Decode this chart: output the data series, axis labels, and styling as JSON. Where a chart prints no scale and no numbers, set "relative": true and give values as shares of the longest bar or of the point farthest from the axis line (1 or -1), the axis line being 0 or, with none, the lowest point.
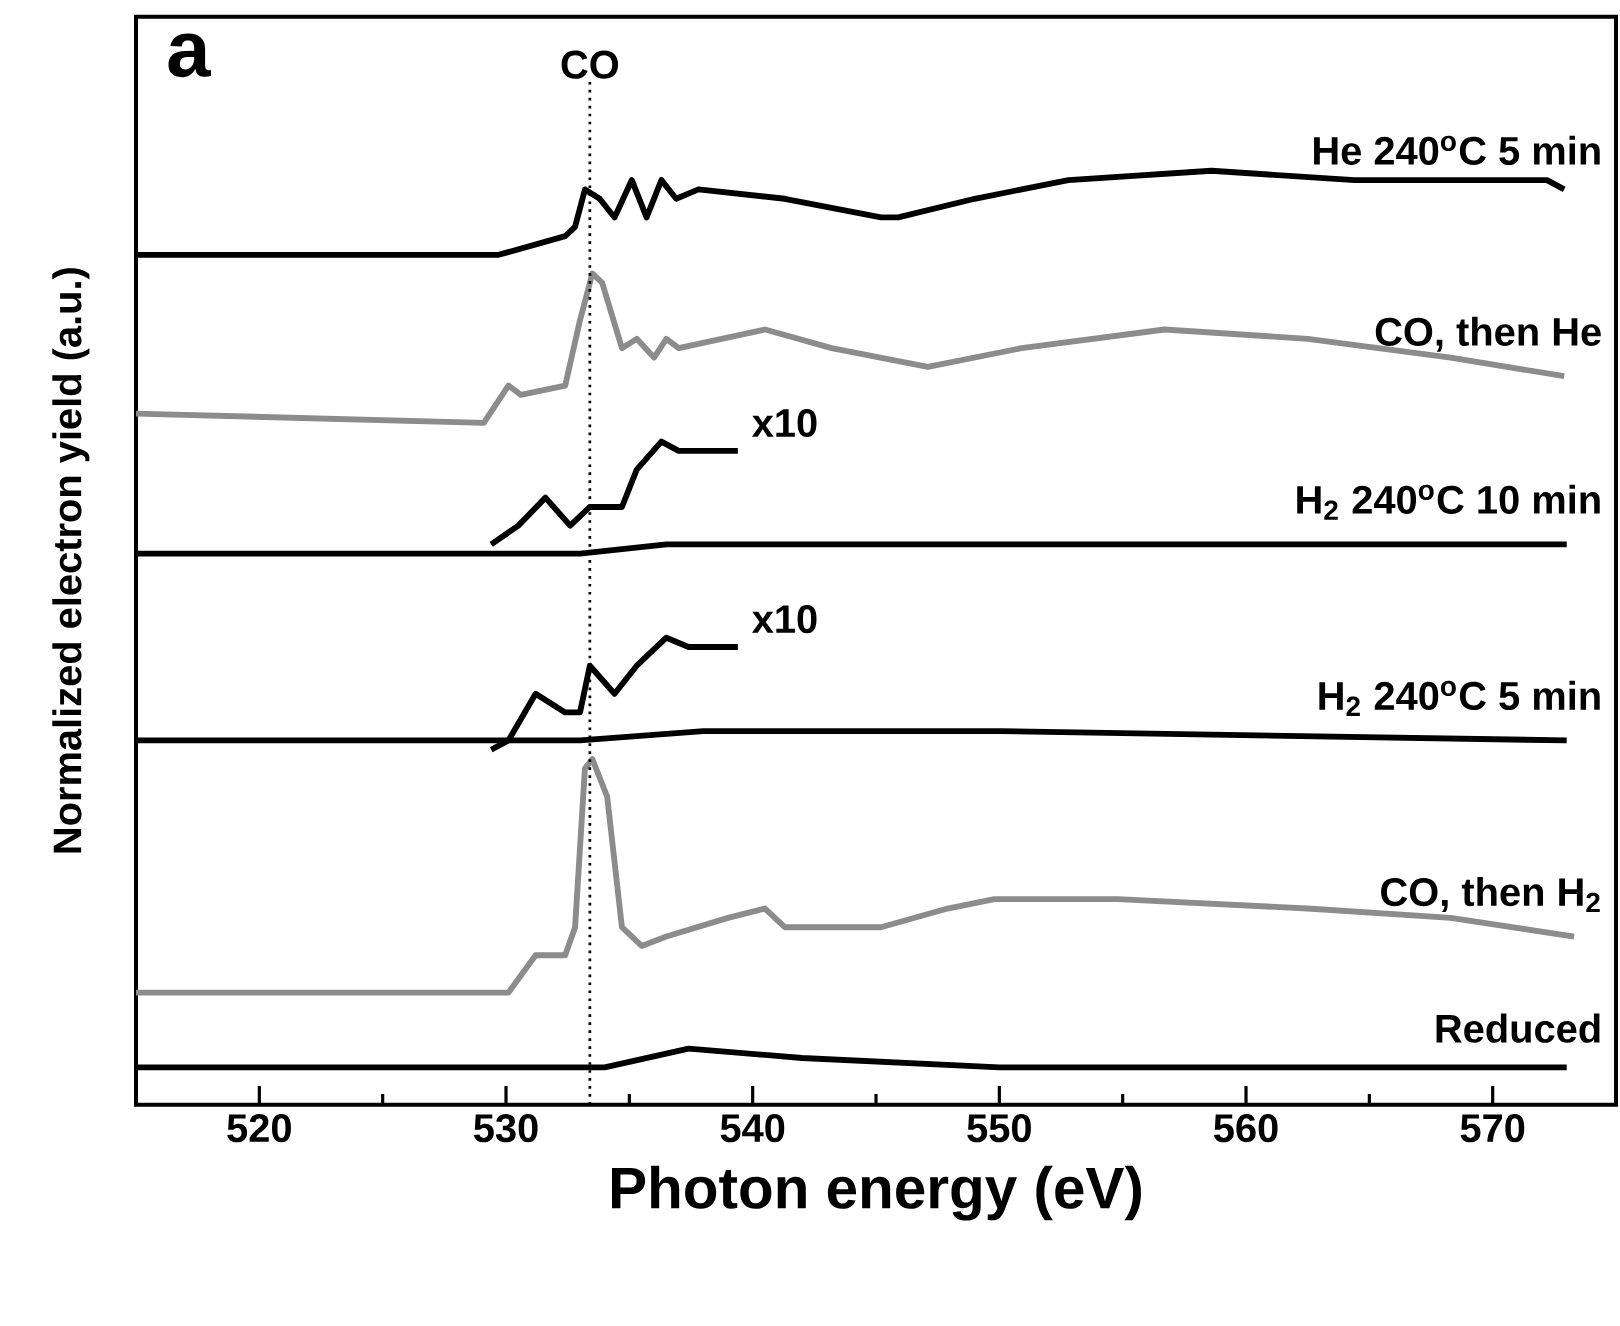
{
  "chart_data": {
    "type": "line",
    "relative": true,
    "xlabel": "Photon energy (eV)",
    "ylabel": "Normalized electron yield (a.u.)",
    "xlim": [
      515,
      575
    ],
    "xticks": [
      520,
      530,
      540,
      550,
      560,
      570
    ],
    "marker": "none",
    "line_style": "solid",
    "ref_lines": [
      {
        "axis": "x",
        "value": 533.4,
        "label": "CO",
        "line_style": "dotted",
        "color": "#000000"
      }
    ],
    "annotations": [
      "a"
    ],
    "series": [
      {
        "name": "He 240$^{o}$C 5 min",
        "color": "#000000",
        "x": [
          515.0,
          529.7,
          532.4,
          532.8,
          533.2,
          533.8,
          534.4,
          535.1,
          535.7,
          536.3,
          536.9,
          537.8,
          541.3,
          545.2,
          545.9,
          549.0,
          552.8,
          558.6,
          564.4,
          572.2,
          572.9
        ],
        "values": [
          0.91,
          0.91,
          0.93,
          0.94,
          0.98,
          0.97,
          0.95,
          0.99,
          0.95,
          0.99,
          0.97,
          0.98,
          0.97,
          0.95,
          0.95,
          0.97,
          0.99,
          1.0,
          0.99,
          0.99,
          0.98
        ]
      },
      {
        "name": "CO, then He",
        "color": "#8c8c8c",
        "x": [
          515.0,
          529.1,
          530.1,
          530.6,
          532.4,
          533.0,
          533.5,
          533.9,
          534.7,
          535.3,
          536.0,
          536.5,
          537.0,
          540.5,
          543.2,
          547.1,
          550.9,
          556.7,
          562.5,
          568.3,
          572.9
        ],
        "values": [
          0.74,
          0.73,
          0.77,
          0.76,
          0.77,
          0.84,
          0.89,
          0.88,
          0.81,
          0.82,
          0.8,
          0.82,
          0.81,
          0.83,
          0.81,
          0.79,
          0.81,
          0.83,
          0.82,
          0.8,
          0.78
        ]
      },
      {
        "name": "x10",
        "color": "#000000",
        "x": [
          529.4,
          530.5,
          531.6,
          532.6,
          533.4,
          534.7,
          535.3,
          536.3,
          537.0,
          538.2,
          539.4
        ],
        "values": [
          0.6,
          0.62,
          0.65,
          0.62,
          0.64,
          0.64,
          0.68,
          0.71,
          0.7,
          0.7,
          0.7
        ]
      },
      {
        "name": "H$_{2}$ 240$^{o}$C 10 min",
        "color": "#000000",
        "x": [
          515.0,
          529.5,
          533.0,
          536.5,
          545.0,
          560.0,
          573.0
        ],
        "values": [
          0.59,
          0.59,
          0.59,
          0.6,
          0.6,
          0.6,
          0.6
        ]
      },
      {
        "name": "x10",
        "color": "#000000",
        "x": [
          529.4,
          530.1,
          531.2,
          532.4,
          533.0,
          533.4,
          534.4,
          535.3,
          536.5,
          537.4,
          539.4
        ],
        "values": [
          0.38,
          0.39,
          0.44,
          0.42,
          0.42,
          0.47,
          0.44,
          0.47,
          0.5,
          0.49,
          0.49
        ]
      },
      {
        "name": "H$_{2}$ 240$^{o}$C 5 min",
        "color": "#000000",
        "x": [
          515.0,
          529.0,
          533.0,
          538.0,
          550.0,
          573.0
        ],
        "values": [
          0.39,
          0.39,
          0.39,
          0.4,
          0.4,
          0.39
        ]
      },
      {
        "name": "CO, then H$_{2}$",
        "color": "#8c8c8c",
        "x": [
          515.0,
          530.1,
          531.2,
          532.4,
          532.8,
          533.2,
          533.5,
          534.1,
          534.7,
          535.5,
          536.5,
          539.0,
          540.5,
          541.3,
          545.2,
          547.9,
          549.8,
          554.8,
          562.5,
          568.3,
          573.3
        ],
        "values": [
          0.12,
          0.12,
          0.16,
          0.16,
          0.19,
          0.36,
          0.37,
          0.33,
          0.19,
          0.17,
          0.18,
          0.2,
          0.21,
          0.19,
          0.19,
          0.21,
          0.22,
          0.22,
          0.21,
          0.2,
          0.18
        ]
      },
      {
        "name": "Reduced",
        "color": "#000000",
        "x": [
          515.0,
          530.0,
          534.0,
          537.4,
          542.0,
          550.0,
          573.0
        ],
        "values": [
          0.04,
          0.04,
          0.04,
          0.06,
          0.05,
          0.04,
          0.04
        ]
      }
    ]
  }
}
